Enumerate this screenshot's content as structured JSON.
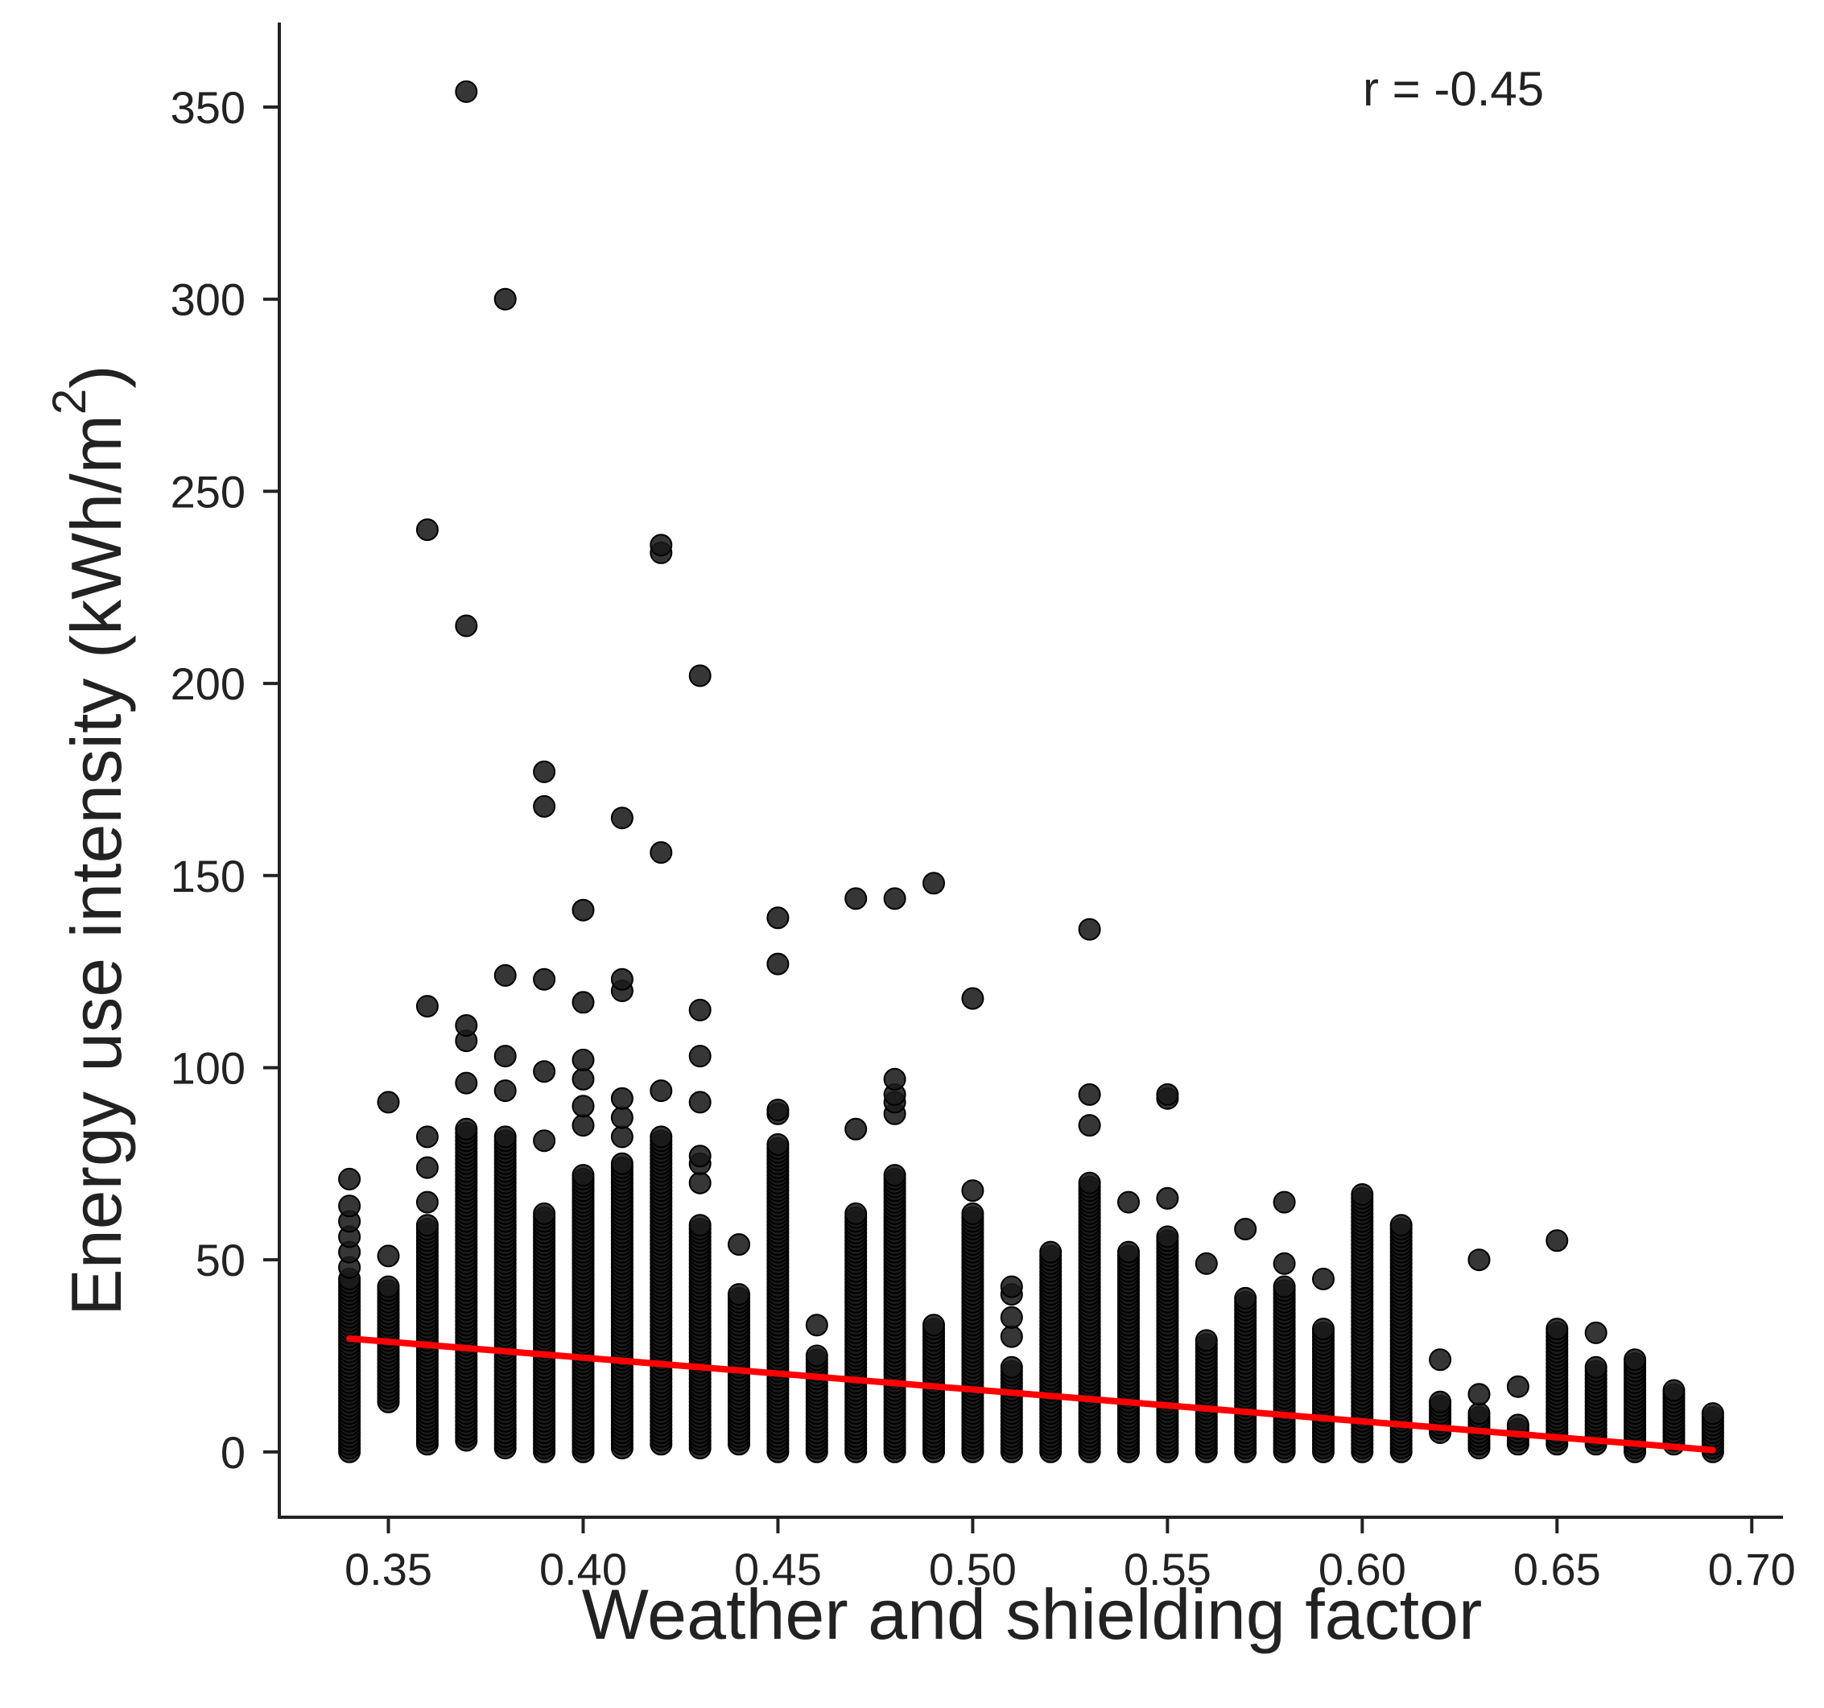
{
  "chart_data": {
    "type": "scatter",
    "xlabel": "Weather and shielding factor",
    "ylabel": "Energy use intensity (kWh/m",
    "ylabel_superscript": "2",
    "ylabel_suffix": ")",
    "annotation": "r = -0.45",
    "xlim": [
      0.322,
      0.708
    ],
    "ylim": [
      -17,
      372
    ],
    "x_ticks": [
      0.35,
      0.4,
      0.45,
      0.5,
      0.55,
      0.6,
      0.65,
      0.7
    ],
    "x_tick_labels": [
      "0.35",
      "0.40",
      "0.45",
      "0.50",
      "0.55",
      "0.60",
      "0.65",
      "0.70"
    ],
    "y_ticks": [
      0,
      50,
      100,
      150,
      200,
      250,
      300,
      350
    ],
    "y_tick_labels": [
      "0",
      "50",
      "100",
      "150",
      "200",
      "250",
      "300",
      "350"
    ],
    "grid": false,
    "marker_color": "#1a1a1a",
    "trend_color": "#ff0000",
    "trend_line": {
      "x": [
        0.34,
        0.69
      ],
      "y": [
        29.5,
        0.5
      ]
    },
    "columns": [
      {
        "x": 0.34,
        "dense": [
          0,
          45
        ],
        "points": [
          48,
          52,
          56,
          60,
          64,
          71
        ]
      },
      {
        "x": 0.35,
        "dense": [
          13,
          43
        ],
        "points": [
          51,
          91
        ]
      },
      {
        "x": 0.36,
        "dense": [
          2,
          59
        ],
        "points": [
          65,
          74,
          82,
          116,
          240
        ]
      },
      {
        "x": 0.37,
        "dense": [
          3,
          84
        ],
        "points": [
          96,
          107,
          111,
          215,
          354
        ]
      },
      {
        "x": 0.38,
        "dense": [
          1,
          82
        ],
        "points": [
          94,
          103,
          124,
          300
        ]
      },
      {
        "x": 0.39,
        "dense": [
          0,
          62
        ],
        "points": [
          81,
          99,
          123,
          168,
          177
        ]
      },
      {
        "x": 0.4,
        "dense": [
          0,
          72
        ],
        "points": [
          85,
          90,
          97,
          102,
          117,
          141
        ]
      },
      {
        "x": 0.41,
        "dense": [
          1,
          75
        ],
        "points": [
          82,
          87,
          92,
          120,
          123,
          165
        ]
      },
      {
        "x": 0.42,
        "dense": [
          2,
          82
        ],
        "points": [
          94,
          156,
          234,
          236
        ]
      },
      {
        "x": 0.43,
        "dense": [
          1,
          59
        ],
        "points": [
          70,
          75,
          77,
          91,
          103,
          115,
          202
        ]
      },
      {
        "x": 0.44,
        "dense": [
          2,
          41
        ],
        "points": [
          54
        ]
      },
      {
        "x": 0.45,
        "dense": [
          0,
          80
        ],
        "points": [
          88,
          89,
          127,
          139
        ]
      },
      {
        "x": 0.46,
        "dense": [
          0,
          25
        ],
        "points": [
          33
        ]
      },
      {
        "x": 0.47,
        "dense": [
          0,
          62
        ],
        "points": [
          84,
          144
        ]
      },
      {
        "x": 0.48,
        "dense": [
          0,
          72
        ],
        "points": [
          88,
          91,
          93,
          97,
          144
        ]
      },
      {
        "x": 0.49,
        "dense": [
          0,
          33
        ],
        "points": [
          148
        ]
      },
      {
        "x": 0.5,
        "dense": [
          0,
          62
        ],
        "points": [
          68,
          118
        ]
      },
      {
        "x": 0.51,
        "dense": [
          0,
          22
        ],
        "points": [
          30,
          35,
          41,
          43
        ]
      },
      {
        "x": 0.52,
        "dense": [
          0,
          52
        ],
        "points": []
      },
      {
        "x": 0.53,
        "dense": [
          0,
          70
        ],
        "points": [
          85,
          93,
          136
        ]
      },
      {
        "x": 0.54,
        "dense": [
          0,
          52
        ],
        "points": [
          65
        ]
      },
      {
        "x": 0.55,
        "dense": [
          0,
          56
        ],
        "points": [
          66,
          92,
          93
        ]
      },
      {
        "x": 0.56,
        "dense": [
          0,
          29
        ],
        "points": [
          49
        ]
      },
      {
        "x": 0.57,
        "dense": [
          0,
          40
        ],
        "points": [
          58
        ]
      },
      {
        "x": 0.58,
        "dense": [
          0,
          43
        ],
        "points": [
          49,
          65
        ]
      },
      {
        "x": 0.59,
        "dense": [
          0,
          32
        ],
        "points": [
          45
        ]
      },
      {
        "x": 0.6,
        "dense": [
          0,
          67
        ],
        "points": []
      },
      {
        "x": 0.61,
        "dense": [
          0,
          59
        ],
        "points": []
      },
      {
        "x": 0.62,
        "dense": [
          5,
          13
        ],
        "points": [
          24
        ]
      },
      {
        "x": 0.63,
        "dense": [
          1,
          10
        ],
        "points": [
          15,
          50
        ]
      },
      {
        "x": 0.64,
        "dense": [
          2,
          7
        ],
        "points": [
          17
        ]
      },
      {
        "x": 0.65,
        "dense": [
          2,
          32
        ],
        "points": [
          55
        ]
      },
      {
        "x": 0.66,
        "dense": [
          2,
          22
        ],
        "points": [
          31
        ]
      },
      {
        "x": 0.67,
        "dense": [
          0,
          24
        ],
        "points": []
      },
      {
        "x": 0.68,
        "dense": [
          2,
          16
        ],
        "points": []
      },
      {
        "x": 0.69,
        "dense": [
          0,
          10
        ],
        "points": []
      }
    ]
  }
}
